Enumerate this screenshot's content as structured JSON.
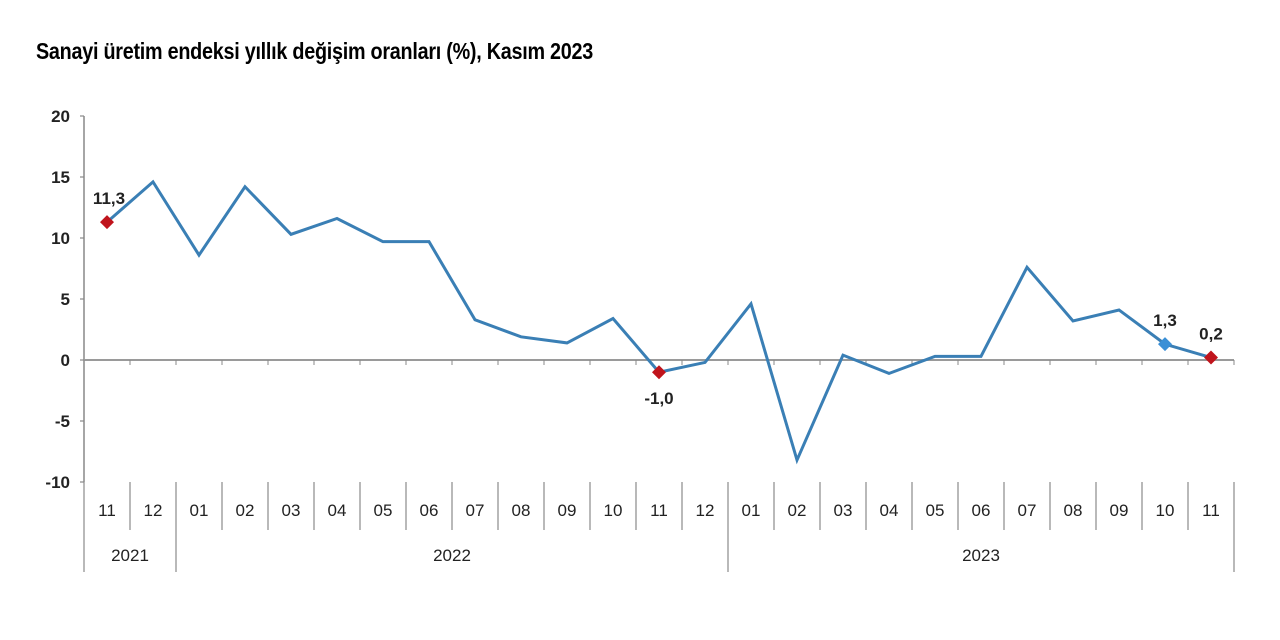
{
  "title": "Sanayi üretim endeksi yıllık değişim oranları (%), Kasım 2023",
  "colors": {
    "line": "#3a7fb5",
    "highlight_red": "#c0141c",
    "highlight_blue": "#3a8fd6",
    "axis": "#888888"
  },
  "chart_data": {
    "type": "line",
    "title": "Sanayi üretim endeksi yıllık değişim oranları (%), Kasım 2023",
    "xlabel": "",
    "ylabel": "",
    "ylim": [
      -10,
      20
    ],
    "yticks": [
      20,
      15,
      10,
      5,
      0,
      -5,
      -10
    ],
    "grid": false,
    "legend": null,
    "categories": [
      "11",
      "12",
      "01",
      "02",
      "03",
      "04",
      "05",
      "06",
      "07",
      "08",
      "09",
      "10",
      "11",
      "12",
      "01",
      "02",
      "03",
      "04",
      "05",
      "06",
      "07",
      "08",
      "09",
      "10",
      "11"
    ],
    "year_groups": [
      {
        "label": "2021",
        "span": 2
      },
      {
        "label": "2022",
        "span": 12
      },
      {
        "label": "2023",
        "span": 11
      }
    ],
    "series": [
      {
        "name": "Sanayi üretim endeksi yıllık değişim (%)",
        "values": [
          11.3,
          14.6,
          8.6,
          14.2,
          10.3,
          11.6,
          9.7,
          9.7,
          3.3,
          1.9,
          1.4,
          3.4,
          -1.0,
          -0.2,
          4.6,
          -8.2,
          0.4,
          -1.1,
          0.3,
          0.3,
          7.6,
          3.2,
          4.1,
          1.3,
          0.2
        ]
      }
    ],
    "annotations": [
      {
        "index": 0,
        "label": "11,3",
        "marker": "red-diamond"
      },
      {
        "index": 12,
        "label": "-1,0",
        "marker": "red-diamond"
      },
      {
        "index": 23,
        "label": "1,3",
        "marker": "blue-diamond"
      },
      {
        "index": 24,
        "label": "0,2",
        "marker": "red-diamond"
      }
    ]
  }
}
